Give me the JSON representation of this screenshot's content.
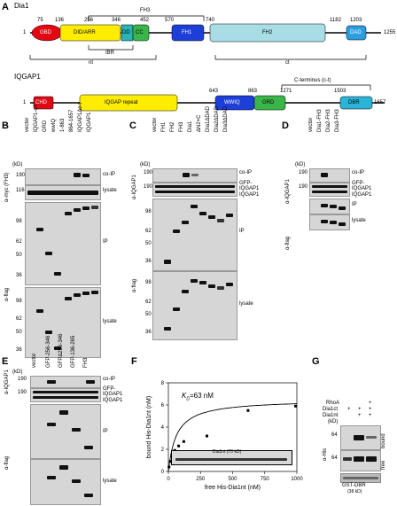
{
  "panels": {
    "A": {
      "letter": "A",
      "dia1": {
        "name": "Dia1",
        "start": "1",
        "end": "1255",
        "domains": [
          "GBD",
          "DID/ARR",
          "DD",
          "CC",
          "FH1",
          "FH2",
          "DAD"
        ],
        "positions": [
          "75",
          "136",
          "256",
          "346",
          "452",
          "570",
          "740",
          "1182",
          "1203"
        ],
        "brackets": {
          "fh3": "FH3",
          "ibr": "IBR",
          "nt": "nt",
          "ct": "ct"
        }
      },
      "iqgap1": {
        "name": "IQGAP1",
        "start": "1",
        "end": "1657",
        "domains": [
          "CHD",
          "IQGAP repeat",
          "WWIQ",
          "GRD",
          "DBR"
        ],
        "positions": [
          "643",
          "863",
          "1271",
          "1503"
        ],
        "cterm": "C-terminus (c-t)"
      }
    },
    "B": {
      "letter": "B",
      "lanes": [
        "vector",
        "IQGAP1-c-t",
        "GRD",
        "wwIQ",
        "1-863",
        "864-1657",
        "IQGAP1Δc-t",
        "IQGAP1"
      ],
      "antibodies": {
        "top": "α-myc (FH3)",
        "bottom": "α-flag"
      },
      "rows": [
        "co-IP",
        "lysate",
        "IP",
        "lysate"
      ],
      "kd": "(kD)",
      "markers": [
        "190",
        "116",
        "98",
        "62",
        "50",
        "36",
        "98",
        "62",
        "50",
        "36"
      ]
    },
    "C": {
      "letter": "C",
      "lanes": [
        "vector",
        "FH1",
        "FH2",
        "FH3",
        "Dia1",
        "ΔN2+C",
        "Dia1ΔDAD",
        "Dia2ΔDAD",
        "Dia3ΔDAD"
      ],
      "antibodies": {
        "top": "α-IQGAP1",
        "bottom": "α-flag"
      },
      "rows": [
        "co-IP",
        "GFP-",
        "IQGAP1",
        "IQGAP1",
        "IP",
        "lysate"
      ],
      "kd": "(kD)",
      "markers": [
        "190",
        "190",
        "98",
        "62",
        "50",
        "36",
        "98",
        "62",
        "50",
        "36"
      ]
    },
    "D": {
      "letter": "D",
      "lanes": [
        "vector",
        "Dia1-FH3",
        "Dia2-FH3",
        "Dia3-FH3"
      ],
      "antibodies": {
        "top": "α-IQGAP1",
        "bottom": "α-flag"
      },
      "rows": [
        "co-IP",
        "GFP-",
        "IQGAP1",
        "IQGAP1",
        "IP",
        "lysate"
      ],
      "kd": "(kD)",
      "markers": [
        "190",
        "190"
      ]
    },
    "E": {
      "letter": "E",
      "lanes": [
        "vector",
        "GFP-256-346",
        "GFPΔ256-346",
        "GFP-136-265",
        "FH3"
      ],
      "antibodies": {
        "top": "α-IQGAP1",
        "bottom": "α-flag"
      },
      "rows": [
        "co-IP",
        "GFP-",
        "IQGAP1",
        "IQGAP1",
        "IP",
        "lysate"
      ],
      "kd": "(kD)",
      "markers": [
        "190",
        "190"
      ]
    },
    "F": {
      "letter": "F",
      "kd_label": "K",
      "kd_sub": "D",
      "kd_value": "=63 nM",
      "inset": "Dia1nt (70 kD)"
    },
    "G": {
      "letter": "G",
      "conditions": [
        "RhoA",
        "Dia1ct",
        "Dia1nt"
      ],
      "signs": [
        [
          "",
          "",
          "+"
        ],
        [
          "+",
          "+",
          "+"
        ],
        [
          "",
          "+",
          "+"
        ]
      ],
      "antibody": "α-His",
      "kd": "(kD)",
      "markers": [
        "64",
        "64"
      ],
      "rows": [
        "bound",
        "free"
      ],
      "bottom": "GST-DBR",
      "bottom_sub": "(38 kD)"
    }
  },
  "chart_data": {
    "type": "scatter",
    "title": "",
    "xlabel": "free His-Dia1nt (nM)",
    "ylabel": "bound His-Dia1nt (nM)",
    "xlim": [
      0,
      1000
    ],
    "ylim": [
      0,
      8
    ],
    "xticks": [
      0,
      250,
      500,
      750,
      1000
    ],
    "yticks": [
      0,
      2,
      4,
      6,
      8
    ],
    "x": [
      5,
      15,
      30,
      50,
      80,
      120,
      300,
      620,
      990
    ],
    "y": [
      0.4,
      0.9,
      1.4,
      1.9,
      2.3,
      2.7,
      3.2,
      5.5,
      5.9
    ],
    "fit": {
      "kd": 63,
      "bmax": 6.5
    }
  }
}
